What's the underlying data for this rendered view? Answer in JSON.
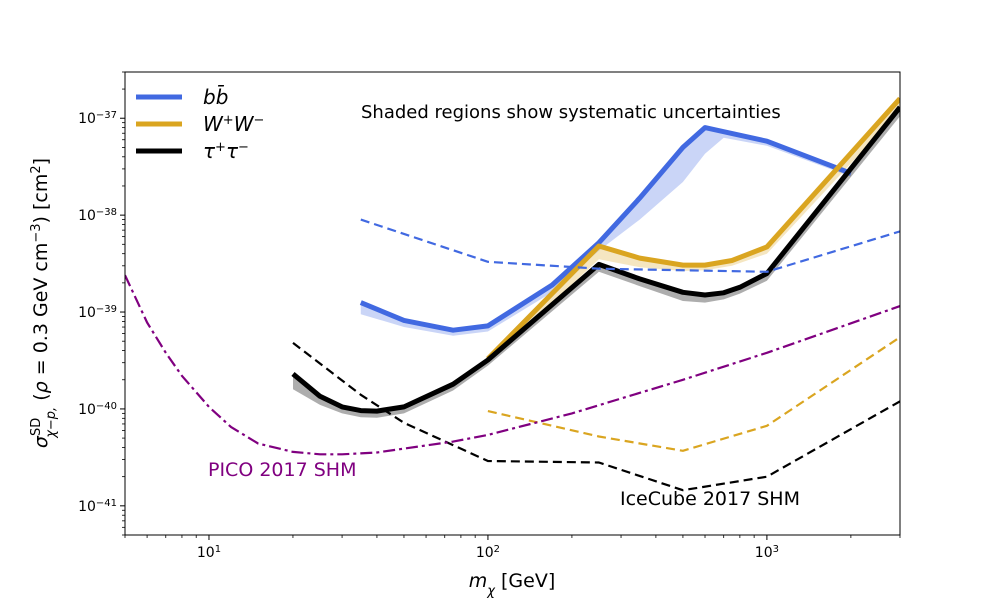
{
  "chart_data": {
    "type": "line",
    "x_scale": "log",
    "y_scale": "log",
    "xlim": [
      5,
      3000
    ],
    "ylim": [
      5e-42,
      3e-37
    ],
    "xlabel": "m_χ [GeV]",
    "ylabel": "σ^SD_χ−p, (ρ = 0.3 GeV cm^−3) [cm^2]",
    "x_ticks": [
      {
        "value": 10,
        "base": "10",
        "exp": "1"
      },
      {
        "value": 100,
        "base": "10",
        "exp": "2"
      },
      {
        "value": 1000,
        "base": "10",
        "exp": "3"
      }
    ],
    "y_ticks": [
      {
        "value": 1e-41,
        "base": "10",
        "exp": "−41"
      },
      {
        "value": 1e-40,
        "base": "10",
        "exp": "−40"
      },
      {
        "value": 1e-39,
        "base": "10",
        "exp": "−39"
      },
      {
        "value": 1e-38,
        "base": "10",
        "exp": "−38"
      },
      {
        "value": 1e-37,
        "base": "10",
        "exp": "−37"
      }
    ],
    "series": [
      {
        "name": "bb_limit",
        "color": "#4169e1",
        "style": "solid",
        "width": 5,
        "x": [
          35,
          50,
          75,
          100,
          170,
          250,
          350,
          500,
          600,
          1000,
          2000
        ],
        "y": [
          1.25e-39,
          8.2e-40,
          6.5e-40,
          7.2e-40,
          1.9e-39,
          5.2e-39,
          1.5e-38,
          5e-38,
          8e-38,
          5.8e-38,
          2.7e-38
        ]
      },
      {
        "name": "WW_limit",
        "color": "#daa520",
        "style": "solid",
        "width": 5,
        "x": [
          100,
          250,
          350,
          500,
          600,
          750,
          1000,
          3000
        ],
        "y": [
          3.3e-40,
          4.8e-39,
          3.6e-39,
          3.05e-39,
          3.05e-39,
          3.4e-39,
          4.7e-39,
          1.6e-37
        ]
      },
      {
        "name": "tautau_limit",
        "color": "#000000",
        "style": "solid",
        "width": 5,
        "x": [
          20,
          25,
          30,
          35,
          40,
          50,
          75,
          100,
          250,
          350,
          500,
          600,
          700,
          800,
          1000,
          3000
        ],
        "y": [
          2.3e-40,
          1.35e-40,
          1.05e-40,
          9.6e-41,
          9.5e-41,
          1.05e-40,
          1.8e-40,
          3.2e-40,
          3.1e-39,
          2.2e-39,
          1.6e-39,
          1.5e-39,
          1.58e-39,
          1.8e-39,
          2.5e-39,
          1.3e-37
        ]
      },
      {
        "name": "bb_dashed",
        "color": "#4169e1",
        "style": "dashed",
        "width": 2.2,
        "x": [
          35,
          100,
          250,
          1000,
          3000
        ],
        "y": [
          9e-39,
          3.3e-39,
          2.8e-39,
          2.6e-39,
          6.8e-39
        ]
      },
      {
        "name": "WW_dashed",
        "color": "#daa520",
        "style": "dashed",
        "width": 2.2,
        "x": [
          100,
          250,
          500,
          1000,
          3000
        ],
        "y": [
          9.5e-41,
          5.2e-41,
          3.7e-41,
          6.7e-41,
          5.5e-40
        ]
      },
      {
        "name": "tautau_dashed",
        "color": "#000000",
        "style": "dashed",
        "width": 2.2,
        "x": [
          20,
          35,
          50,
          100,
          250,
          500,
          1000,
          3000
        ],
        "y": [
          4.8e-40,
          1.4e-40,
          7.2e-41,
          2.9e-41,
          2.8e-41,
          1.45e-41,
          2e-41,
          1.2e-40
        ]
      },
      {
        "name": "PICO_2017_SHM",
        "color": "#800080",
        "style": "dashdot",
        "width": 2.2,
        "x": [
          5,
          6,
          7,
          8,
          10,
          12,
          15,
          20,
          25,
          30,
          40,
          50,
          75,
          100,
          200,
          500,
          1000,
          3000
        ],
        "y": [
          2.4e-39,
          7.8e-40,
          3.8e-40,
          2.2e-40,
          1.05e-40,
          6.5e-41,
          4.4e-41,
          3.6e-41,
          3.4e-41,
          3.4e-41,
          3.55e-41,
          3.9e-41,
          4.6e-41,
          5.4e-41,
          9e-41,
          2e-40,
          3.8e-40,
          1.15e-39
        ]
      }
    ],
    "bands": [
      {
        "name": "bb_band",
        "color": "#4169e1",
        "opacity": 0.28,
        "x": [
          35,
          50,
          75,
          100,
          170,
          250,
          350,
          500,
          600,
          700,
          1000,
          2000
        ],
        "y_low": [
          9.5e-40,
          7e-40,
          5.7e-40,
          6.3e-40,
          1.6e-39,
          4.3e-39,
          9e-39,
          2.2e-38,
          4.3e-38,
          6.3e-38,
          5.2e-38,
          2.5e-38
        ],
        "y_high": [
          1.25e-39,
          8.2e-40,
          6.5e-40,
          7.2e-40,
          1.9e-39,
          5.2e-39,
          1.5e-38,
          5e-38,
          8e-38,
          7.2e-38,
          5.8e-38,
          2.7e-38
        ]
      },
      {
        "name": "WW_band",
        "color": "#daa520",
        "opacity": 0.28,
        "x": [
          100,
          250,
          350,
          500,
          600,
          750,
          1000,
          3000
        ],
        "y_low": [
          3e-40,
          3.5e-39,
          2.9e-39,
          2.65e-39,
          2.7e-39,
          3e-39,
          4e-39,
          1.2e-37
        ],
        "y_high": [
          3.3e-40,
          4.8e-39,
          3.6e-39,
          3.05e-39,
          3.05e-39,
          3.4e-39,
          4.7e-39,
          1.6e-37
        ]
      },
      {
        "name": "tautau_band",
        "color": "#000000",
        "opacity": 0.32,
        "x": [
          20,
          25,
          30,
          35,
          40,
          50,
          75,
          100,
          250,
          350,
          500,
          600,
          700,
          800,
          1000,
          3000
        ],
        "y_low": [
          1.6e-40,
          1.1e-40,
          9e-41,
          8.2e-41,
          8.1e-41,
          9e-41,
          1.55e-40,
          2.8e-40,
          2.6e-39,
          1.85e-39,
          1.3e-39,
          1.25e-39,
          1.35e-39,
          1.55e-39,
          2.1e-39,
          1.05e-37
        ],
        "y_high": [
          2.3e-40,
          1.35e-40,
          1.05e-40,
          9.6e-41,
          9.5e-41,
          1.05e-40,
          1.8e-40,
          3.2e-40,
          3.1e-39,
          2.2e-39,
          1.6e-39,
          1.5e-39,
          1.58e-39,
          1.8e-39,
          2.5e-39,
          1.3e-37
        ]
      }
    ],
    "legend": {
      "placement": "top-left",
      "entries": [
        {
          "label": "b",
          "label_bar": "b̄",
          "color": "#4169e1"
        },
        {
          "label": "W",
          "sup1": "+",
          "label2": "W",
          "sup2": "−",
          "color": "#daa520"
        },
        {
          "label": "τ",
          "sup1": "+",
          "label2": "τ",
          "sup2": "−",
          "color": "#000000"
        }
      ]
    },
    "annotations": {
      "shaded_note": "Shaded regions show systematic uncertainties",
      "pico_label": "PICO 2017 SHM",
      "pico_color": "#800080",
      "icecube_label": "IceCube 2017 SHM"
    }
  }
}
